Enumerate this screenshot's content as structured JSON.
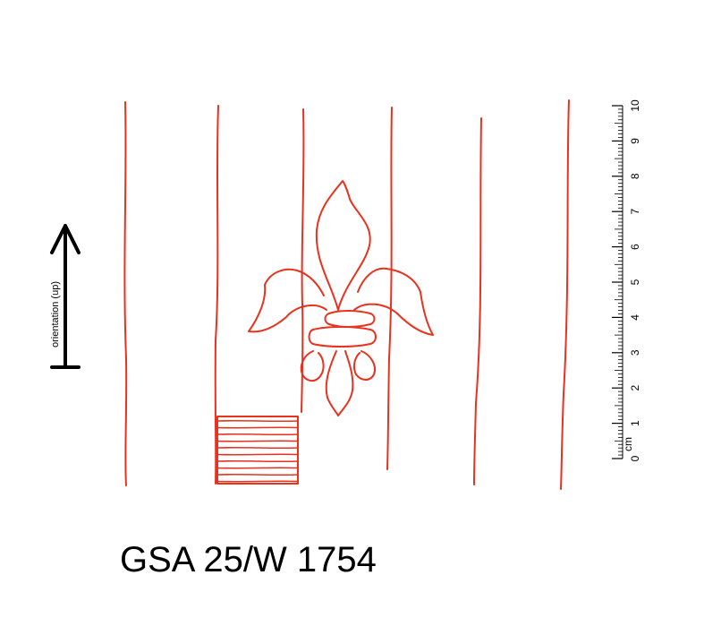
{
  "signature": "GSA 25/W 1754",
  "orientation": {
    "label": "orientation (up)"
  },
  "scale": {
    "unit": "cm",
    "tick_labels": [
      "0",
      "1",
      "2",
      "3",
      "4",
      "5",
      "6",
      "7",
      "8",
      "9",
      "10"
    ],
    "max_cm": 10
  },
  "colors": {
    "drawing": "#e8321e",
    "ink": "#000000"
  },
  "icons": {
    "arrow": "up-arrow-icon",
    "motif": "fleur-de-lis-icon"
  }
}
